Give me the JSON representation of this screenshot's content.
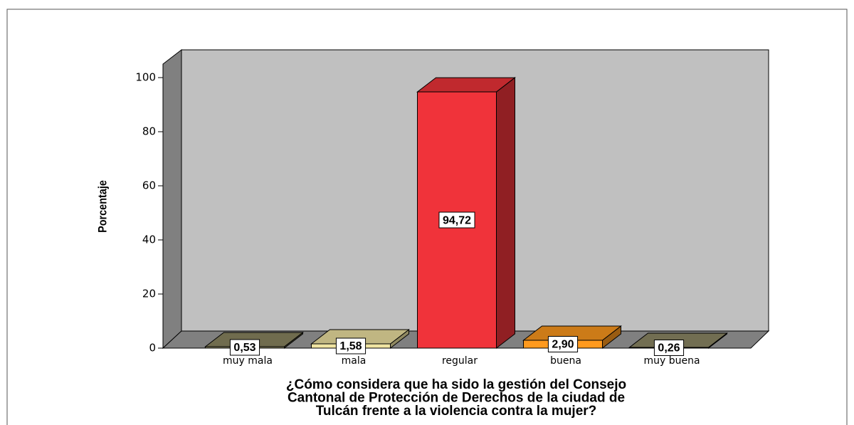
{
  "chart_data": {
    "type": "bar3d",
    "ylabel": "Porcentaje",
    "xlabel": [
      "¿Cómo considera que ha sido la gestión del Consejo",
      "Cantonal de Protección de Derechos de la ciudad de",
      "Tulcán frente a la violencia contra la mujer?"
    ],
    "categories": [
      "muy mala",
      "mala",
      "regular",
      "buena",
      "muy buena"
    ],
    "values": [
      0.53,
      1.58,
      94.72,
      2.9,
      0.26
    ],
    "value_labels": [
      "0,53",
      "1,58",
      "94,72",
      "2,90",
      "0,26"
    ],
    "colors": [
      "#8c8762",
      "#f0e4a2",
      "#f0333a",
      "#ff9a1e",
      "#8e8a66"
    ],
    "ylim": [
      0,
      105
    ],
    "yticks": [
      0,
      20,
      40,
      60,
      80,
      100
    ]
  }
}
